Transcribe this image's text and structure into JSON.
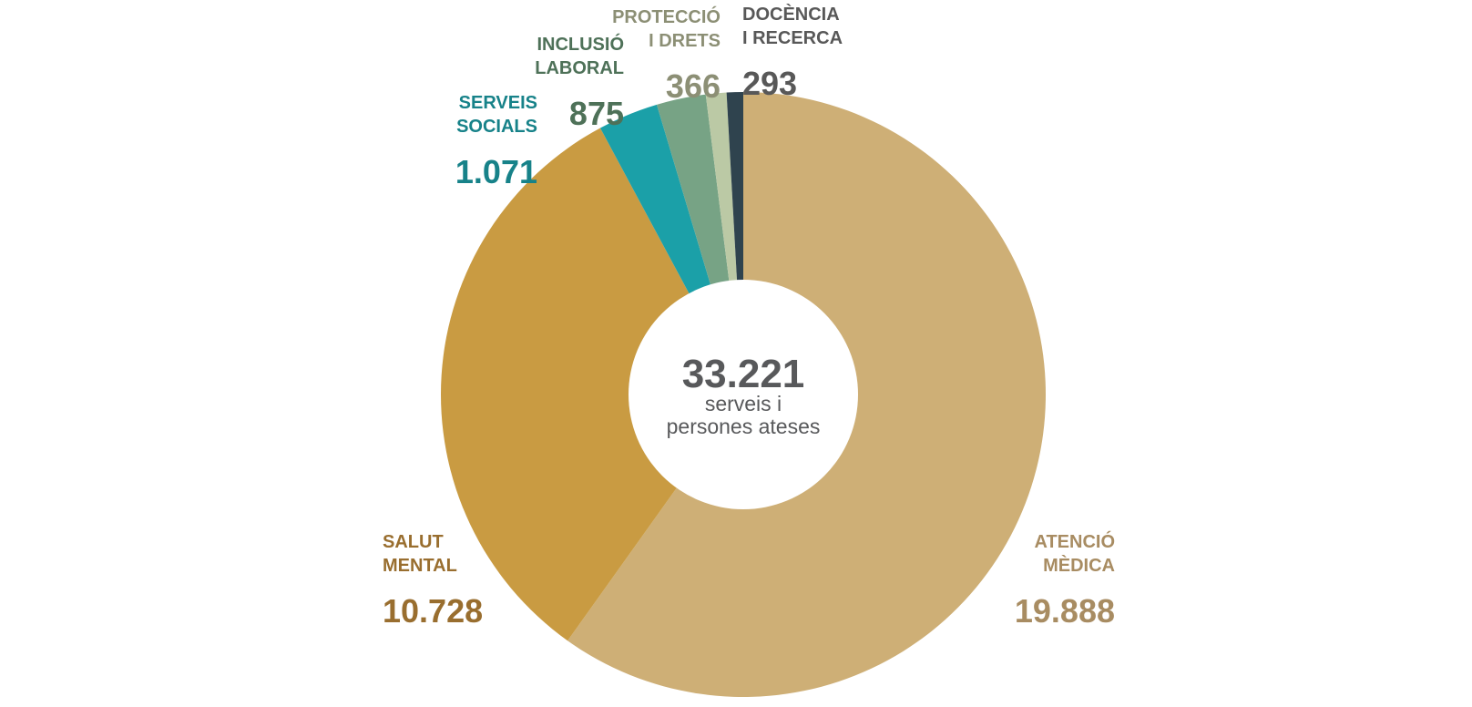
{
  "chart_data": {
    "type": "pie",
    "total_label": "33.221",
    "center_caption": [
      "serveis i",
      "persones ateses"
    ],
    "slices": [
      {
        "label": [
          "ATENCIÓ",
          "MÈDICA"
        ],
        "value": 19888,
        "value_label": "19.888",
        "color": "#CEAF76",
        "text_color": "#A88C62"
      },
      {
        "label": [
          "SALUT",
          "MENTAL"
        ],
        "value": 10728,
        "value_label": "10.728",
        "color": "#C99B42",
        "text_color": "#996E2F"
      },
      {
        "label": [
          "SERVEIS",
          "SOCIALS"
        ],
        "value": 1071,
        "value_label": "1.071",
        "color": "#1BA0A8",
        "text_color": "#178289"
      },
      {
        "label": [
          "INCLUSIÓ",
          "LABORAL"
        ],
        "value": 875,
        "value_label": "875",
        "color": "#77A385",
        "text_color": "#4E7158"
      },
      {
        "label": [
          "PROTECCIÓ",
          "I DRETS"
        ],
        "value": 366,
        "value_label": "366",
        "color": "#BBC9A5",
        "text_color": "#8C8F75"
      },
      {
        "label": [
          "DOCÈNCIA",
          "I RECERCA"
        ],
        "value": 293,
        "value_label": "293",
        "color": "#2F434E",
        "text_color": "#585858"
      }
    ],
    "center_text_color": "#58595B"
  }
}
